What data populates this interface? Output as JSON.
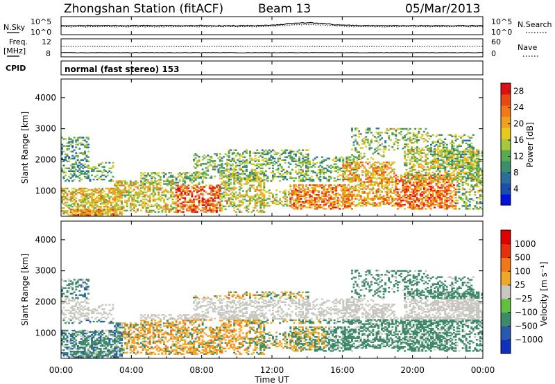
{
  "header": {
    "station": "Zhongshan Station (fitACF)",
    "beam": "Beam 13",
    "date": "05/Mar/2013"
  },
  "sky_panel": {
    "left_label": "N.Sky",
    "right_label": "N.Search",
    "left_ticks": [
      "10^5",
      "10^0"
    ],
    "right_ticks": [
      "10^5",
      "10^0"
    ]
  },
  "freq_panel": {
    "left_label_1": "Freq.",
    "left_label_2": "[MHz]",
    "left_ticks": [
      "12",
      "8"
    ],
    "right_label": "Nave",
    "right_ticks": [
      "60",
      "0"
    ]
  },
  "cpid_panel": {
    "label": "CPID",
    "mode": "normal (fast stereo) 153"
  },
  "chart_data": [
    {
      "type": "heatmap",
      "title": "",
      "xlabel": "Time UT",
      "ylabel": "Slant Range [km]",
      "x_ticks": [
        "00:00",
        "04:00",
        "08:00",
        "12:00",
        "16:00",
        "20:00",
        "00:00"
      ],
      "y_ticks": [
        "1000",
        "2000",
        "3000",
        "4000"
      ],
      "ylim": [
        180,
        4600
      ],
      "colorbar": {
        "label": "Power [dB]",
        "ticks": [
          "4",
          "8",
          "12",
          "16",
          "20",
          "24",
          "28"
        ],
        "range": [
          0,
          30
        ],
        "colors": [
          "#0010e0",
          "#1a4fb0",
          "#2b6e9c",
          "#3d8e6a",
          "#5aaa50",
          "#a8c83c",
          "#e6c81e",
          "#f0a020",
          "#f07818",
          "#e84818",
          "#e01010"
        ]
      }
    },
    {
      "type": "heatmap",
      "title": "",
      "xlabel": "Time UT",
      "ylabel": "Slant Range [km]",
      "x_ticks": [
        "00:00",
        "04:00",
        "08:00",
        "12:00",
        "16:00",
        "20:00",
        "00:00"
      ],
      "y_ticks": [
        "1000",
        "2000",
        "3000",
        "4000"
      ],
      "ylim": [
        180,
        4600
      ],
      "colorbar": {
        "label": "Velocity [m s⁻¹]",
        "ticks": [
          "1000",
          "500",
          "100",
          "25",
          "−25",
          "−100",
          "−500",
          "−1000"
        ],
        "colors": [
          "#1030c0",
          "#2858b0",
          "#3c8a6a",
          "#60c040",
          "#c8c8c0",
          "#f0a828",
          "#f07818",
          "#e83010",
          "#e00000"
        ]
      }
    }
  ]
}
